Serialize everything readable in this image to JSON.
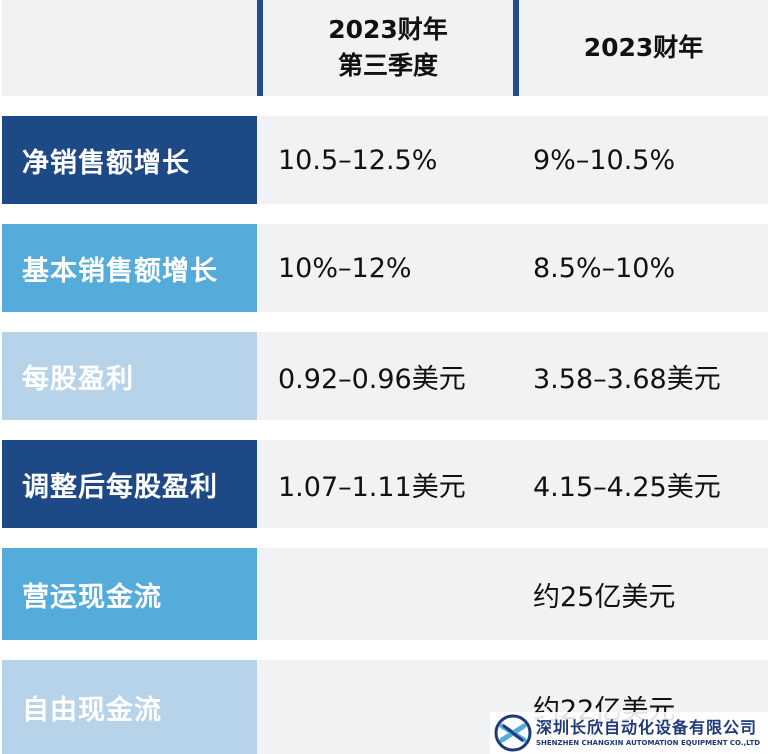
{
  "header": {
    "col1_line1": "2023财年",
    "col1_line2": "第三季度",
    "col2": "2023财年"
  },
  "rows": [
    {
      "label": "净销售额增长",
      "q3": "10.5–12.5%",
      "fy": "9%–10.5%",
      "label_bg": "#1d4a86"
    },
    {
      "label": "基本销售额增长",
      "q3": "10%–12%",
      "fy": "8.5%–10%",
      "label_bg": "#55acdb"
    },
    {
      "label": "每股盈利",
      "q3": "0.92–0.96美元",
      "fy": "3.58–3.68美元",
      "label_bg": "#b7d3ea"
    },
    {
      "label": "调整后每股盈利",
      "q3": "1.07–1.11美元",
      "fy": "4.15–4.25美元",
      "label_bg": "#1d4a86"
    },
    {
      "label": "营运现金流",
      "q3": "",
      "fy": "约25亿美元",
      "label_bg": "#55acdb"
    },
    {
      "label": "自由现金流",
      "q3": "",
      "fy": "约22亿美元",
      "label_bg": "#b7d3ea"
    }
  ],
  "watermark": {
    "name_cn": "深圳长欣自动化设备有限公司",
    "name_en": "SHENZHEN CHANGXIN AUTOMATION EQUIPMENT CO.,LTD"
  }
}
